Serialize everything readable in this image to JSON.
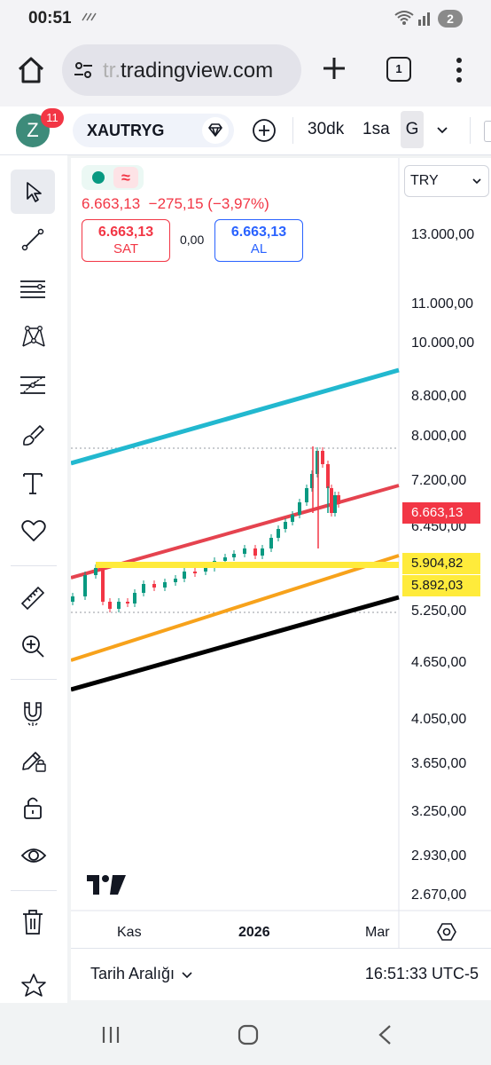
{
  "status_bar": {
    "time": "00:51",
    "notification_count": "2"
  },
  "browser": {
    "url_faded": "tr.",
    "url_main": "tradingview.com",
    "tab_count": "1"
  },
  "toolbar": {
    "avatar_letter": "Z",
    "notification_badge": "11",
    "symbol": "XAUTRYG",
    "intervals": [
      "30dk",
      "1sa",
      "G"
    ],
    "active_interval": "G"
  },
  "legend": {
    "last_price": "6.663,13",
    "change": "−275,15 (−3,97%)",
    "sell_price": "6.663,13",
    "sell_label": "SAT",
    "spread": "0,00",
    "buy_price": "6.663,13",
    "buy_label": "AL"
  },
  "price_axis": {
    "currency": "TRY",
    "labels": [
      "13.000,00",
      "11.000,00",
      "10.000,00",
      "8.800,00",
      "8.000,00",
      "7.200,00",
      "6.450,00",
      "5.250,00",
      "4.650,00",
      "4.050,00",
      "3.650,00",
      "3.250,00",
      "2.930,00",
      "2.670,00"
    ],
    "tags": [
      {
        "text": "6.663,13",
        "bg": "#f23645",
        "fg": "#ffffff"
      },
      {
        "text": "5.904,82",
        "bg": "#ffeb3b",
        "fg": "#131722"
      },
      {
        "text": "5.892,03",
        "bg": "#ffeb3b",
        "fg": "#131722"
      }
    ]
  },
  "time_axis": {
    "labels": [
      "Kas",
      "2026",
      "Mar"
    ]
  },
  "footer": {
    "range_label": "Tarih Aralığı",
    "clock": "16:51:33 UTC-5"
  },
  "colors": {
    "up": "#089981",
    "down": "#f23645",
    "cyan_line": "#22b8cf",
    "red_line": "#e5434f",
    "yellow_line": "#ffeb3b",
    "orange_line": "#f7a21b",
    "black_line": "#000000"
  },
  "chart_data": {
    "type": "candlestick",
    "symbol": "XAUTRYG",
    "scale": "log",
    "last": 6663.13,
    "horizontal_levels": [
      5904.82,
      5892.03
    ],
    "x_ticks": [
      "Kas",
      "2026",
      "Mar"
    ]
  }
}
